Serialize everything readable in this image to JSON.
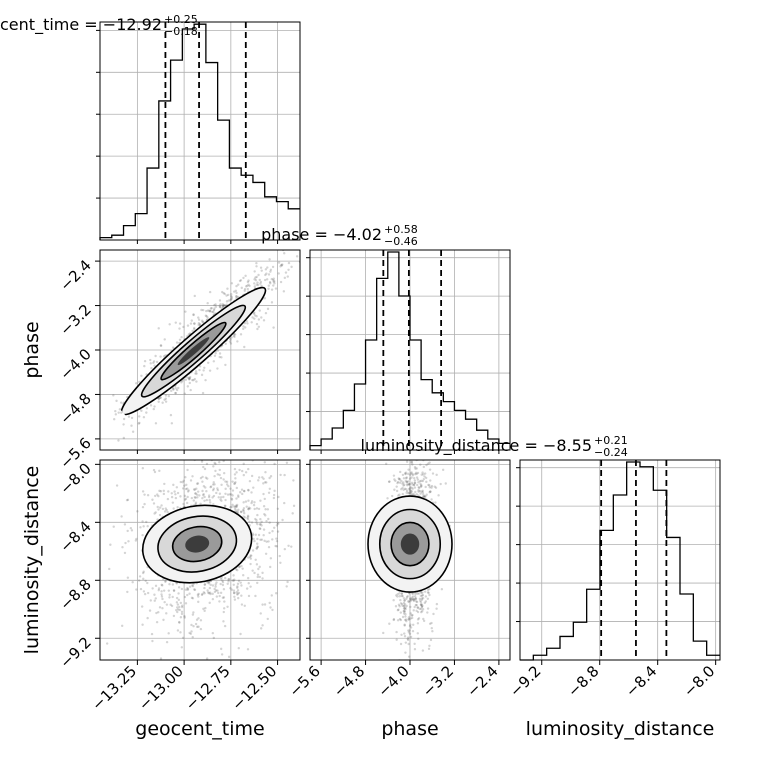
{
  "chart_data": {
    "type": "corner",
    "parameters": [
      "geocent_time",
      "phase",
      "luminosity_distance"
    ],
    "titles": [
      {
        "param": "geocent_time",
        "prefix": "geocent_time = ",
        "median": "−12.92",
        "plus": "+0.25",
        "minus": "−0.18"
      },
      {
        "param": "phase",
        "prefix": "phase = ",
        "median": "−4.02",
        "plus": "+0.58",
        "minus": "−0.46"
      },
      {
        "param": "luminosity_distance",
        "prefix": "luminosity_distance = ",
        "median": "−8.55",
        "plus": "+0.21",
        "minus": "−0.24"
      }
    ],
    "axes": {
      "geocent_time": {
        "range": [
          -13.45,
          -12.38
        ],
        "ticks": [
          -13.25,
          -13.0,
          -12.75,
          -12.5
        ],
        "tick_labels": [
          "−13.25",
          "−13.00",
          "−12.75",
          "−12.50"
        ]
      },
      "phase": {
        "range": [
          -5.8,
          -2.2
        ],
        "ticks": [
          -5.6,
          -4.8,
          -4.0,
          -3.2,
          -2.4
        ],
        "tick_labels": [
          "−5.6",
          "−4.8",
          "−4.0",
          "−3.2",
          "−2.4"
        ]
      },
      "luminosity_distance": {
        "range": [
          -9.35,
          -7.97
        ],
        "ticks": [
          -9.2,
          -8.8,
          -8.4,
          -8.0
        ],
        "tick_labels": [
          "−9.2",
          "−8.8",
          "−8.4",
          "−8.0"
        ]
      }
    },
    "histograms": {
      "geocent_time": {
        "counts": [
          1,
          2,
          6,
          11,
          30,
          58,
          75,
          88,
          90,
          74,
          50,
          30,
          27,
          24,
          18,
          16,
          13
        ],
        "quantiles": [
          -13.1,
          -12.92,
          -12.67
        ]
      },
      "phase": {
        "counts": [
          2,
          5,
          10,
          18,
          30,
          50,
          78,
          90,
          70,
          50,
          32,
          26,
          22,
          18,
          14,
          9,
          5,
          3
        ],
        "quantiles": [
          -4.48,
          -4.02,
          -3.44
        ]
      },
      "luminosity_distance": {
        "counts": [
          0,
          2,
          5,
          10,
          16,
          30,
          55,
          70,
          84,
          82,
          72,
          52,
          28,
          8,
          2
        ],
        "quantiles": [
          -8.79,
          -8.55,
          -8.34
        ]
      }
    },
    "correlations": {
      "phase_vs_geocent_time": {
        "slope": 2.95,
        "noise": 0.22
      },
      "luminosity_distance_vs_geocent_time": {
        "slope": 0.25,
        "noise": 0.24
      },
      "luminosity_distance_vs_phase": {
        "slope": 0.0,
        "noise": 0.26
      }
    },
    "grid": true,
    "colors": {
      "lines": "#000000",
      "grid": "#b0b0b0",
      "samples": "#555555"
    }
  }
}
